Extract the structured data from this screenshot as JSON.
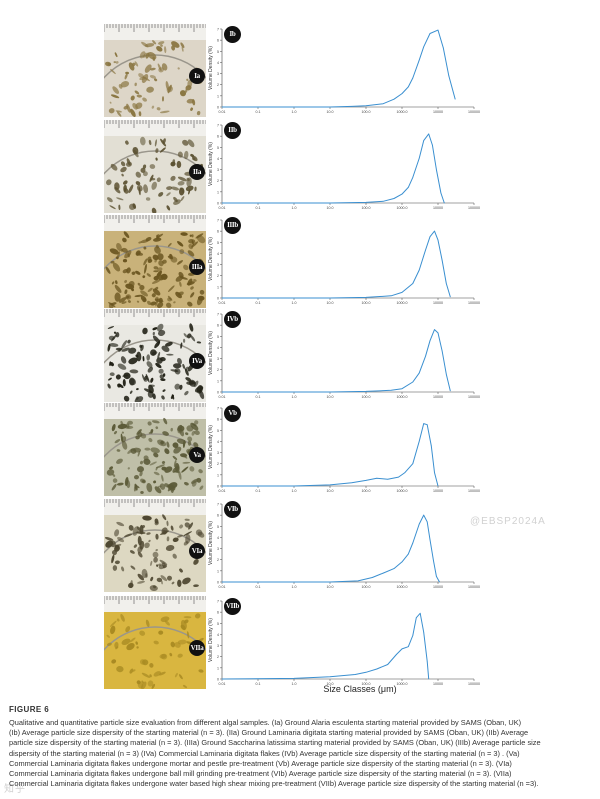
{
  "figure": {
    "label": "FIGURE 6",
    "x_axis_title": "Size Classes (μm)",
    "y_axis_label": "Volume Density (%)",
    "caption_lines": [
      "Qualitative and quantitative particle size evaluation from different algal samples. (Ia) Ground Alaria esculenta starting material provided by SAMS (Oban, UK)",
      "(Ib) Average particle size dispersity of the starting material (n = 3). (IIa) Ground Laminaria digitata starting material provided by SAMS (Oban, UK) (IIb) Average",
      "particle size dispersity of the starting material (n = 3). (IIIa) Ground Saccharina latissima starting material provided by SAMS (Oban, UK) (IIIb) Average particle size",
      "dispersity of the starting material (n = 3) (IVa) Commercial Laminaria digitata flakes (IVb) Average particle size dispersity of the starting material (n = 3) . (Va)",
      "Commercial Laminaria digitata flakes undergone mortar and pestle pre-treatment (Vb) Average particle size dispersity of the starting material (n = 3). (VIa)",
      "Commercial Laminaria digitata flakes undergone ball mill grinding pre-treatment (VIb) Average particle size dispersity of the starting material (n = 3). (VIIa)",
      "Commercial Laminaria digitata flakes undergone water based high shear mixing pre-treatment (VIIb) Average particle size dispersity of the starting material (n =3)."
    ],
    "watermark_left": "知乎",
    "watermark_right": "@EBSP2024A"
  },
  "chart_data": [
    {
      "type": "line",
      "panel": "Ib",
      "photo_label": "Ia",
      "x_scale": "log",
      "xlim": [
        0.01,
        100000
      ],
      "x_ticks": [
        "0.01",
        "0.1",
        "1.0",
        "10.0",
        "100.0",
        "1000.0",
        "10000",
        "100000"
      ],
      "ylim": [
        0,
        7
      ],
      "y_ticks": [
        "0",
        "1",
        "2",
        "3",
        "4",
        "5",
        "6",
        "7"
      ],
      "series": [
        {
          "x": [
            0.01,
            10,
            40,
            100,
            300,
            600,
            1000,
            1500,
            2000,
            3000,
            4000,
            6000,
            10000,
            14000,
            20000,
            30000
          ],
          "y": [
            0,
            0,
            0.05,
            0.12,
            0.3,
            0.7,
            1.2,
            1.8,
            2.6,
            4.2,
            5.4,
            6.6,
            6.9,
            5.3,
            2.8,
            0.7
          ]
        }
      ]
    },
    {
      "type": "line",
      "panel": "IIb",
      "photo_label": "IIa",
      "x_scale": "log",
      "xlim": [
        0.01,
        100000
      ],
      "x_ticks": [
        "0.01",
        "0.1",
        "1.0",
        "10.0",
        "100.0",
        "1000.0",
        "10000",
        "100000"
      ],
      "ylim": [
        0,
        7
      ],
      "y_ticks": [
        "0",
        "1",
        "2",
        "3",
        "4",
        "5",
        "6",
        "7"
      ],
      "series": [
        {
          "x": [
            0.01,
            10,
            100,
            300,
            600,
            1000,
            1500,
            2000,
            3000,
            4000,
            5500,
            7000,
            9000,
            12000,
            15000
          ],
          "y": [
            0,
            0,
            0.05,
            0.15,
            0.4,
            0.8,
            1.4,
            2.3,
            4.0,
            5.6,
            6.2,
            5.2,
            3.0,
            0.9,
            0
          ]
        }
      ]
    },
    {
      "type": "line",
      "panel": "IIIb",
      "photo_label": "IIIa",
      "x_scale": "log",
      "xlim": [
        0.01,
        100000
      ],
      "x_ticks": [
        "0.01",
        "0.1",
        "1.0",
        "10.0",
        "100.0",
        "1000.0",
        "10000",
        "100000"
      ],
      "ylim": [
        0,
        7
      ],
      "y_ticks": [
        "0",
        "1",
        "2",
        "3",
        "4",
        "5",
        "6",
        "7"
      ],
      "series": [
        {
          "x": [
            0.01,
            10,
            100,
            500,
            1000,
            2000,
            3000,
            4500,
            6000,
            8000,
            10000,
            13000,
            17000,
            22000
          ],
          "y": [
            0,
            0,
            0.05,
            0.2,
            0.5,
            1.3,
            2.5,
            4.3,
            5.5,
            6.0,
            5.2,
            3.4,
            1.3,
            0.1
          ]
        }
      ]
    },
    {
      "type": "line",
      "panel": "IVb",
      "photo_label": "IVa",
      "x_scale": "log",
      "xlim": [
        0.01,
        100000
      ],
      "x_ticks": [
        "0.01",
        "0.1",
        "1.0",
        "10.0",
        "100.0",
        "1000.0",
        "10000",
        "100000"
      ],
      "ylim": [
        0,
        7
      ],
      "y_ticks": [
        "0",
        "1",
        "2",
        "3",
        "4",
        "5",
        "6",
        "7"
      ],
      "series": [
        {
          "x": [
            0.01,
            10,
            100,
            500,
            1000,
            2000,
            3000,
            4500,
            6000,
            8000,
            10000,
            13000,
            17000,
            22000
          ],
          "y": [
            0,
            0,
            0.05,
            0.15,
            0.3,
            0.9,
            1.7,
            3.2,
            4.6,
            5.6,
            5.3,
            3.7,
            1.6,
            0.1
          ]
        }
      ]
    },
    {
      "type": "line",
      "panel": "Vb",
      "photo_label": "Va",
      "x_scale": "log",
      "xlim": [
        0.01,
        100000
      ],
      "x_ticks": [
        "0.01",
        "0.1",
        "1.0",
        "10.0",
        "100.0",
        "1000.0",
        "10000",
        "100000"
      ],
      "ylim": [
        0,
        7
      ],
      "y_ticks": [
        "0",
        "1",
        "2",
        "3",
        "4",
        "5",
        "6",
        "7"
      ],
      "series": [
        {
          "x": [
            0.01,
            1,
            10,
            40,
            100,
            200,
            400,
            800,
            1200,
            2000,
            3000,
            4000,
            5000,
            6500,
            8000,
            10000
          ],
          "y": [
            0,
            0,
            0.1,
            0.3,
            0.5,
            0.7,
            0.6,
            0.8,
            1.2,
            2.0,
            4.0,
            5.6,
            5.5,
            3.6,
            1.2,
            0
          ]
        }
      ]
    },
    {
      "type": "line",
      "panel": "VIb",
      "photo_label": "VIa",
      "x_scale": "log",
      "xlim": [
        0.01,
        100000
      ],
      "x_ticks": [
        "0.01",
        "0.1",
        "1.0",
        "10.0",
        "100.0",
        "1000.0",
        "10000",
        "100000"
      ],
      "ylim": [
        0,
        7
      ],
      "y_ticks": [
        "0",
        "1",
        "2",
        "3",
        "4",
        "5",
        "6",
        "7"
      ],
      "series": [
        {
          "x": [
            0.01,
            10,
            60,
            150,
            300,
            600,
            1000,
            1500,
            2000,
            3000,
            4000,
            5000,
            6000,
            7500,
            9000,
            11000
          ],
          "y": [
            0,
            0,
            0.1,
            0.4,
            0.8,
            1.2,
            1.8,
            2.5,
            3.5,
            5.2,
            6.0,
            5.4,
            3.8,
            1.9,
            0.5,
            0
          ]
        }
      ]
    },
    {
      "type": "line",
      "panel": "VIIb",
      "photo_label": "VIIa",
      "x_scale": "log",
      "xlim": [
        0.01,
        100000
      ],
      "x_ticks": [
        "0.01",
        "0.1",
        "1.0",
        "10.0",
        "100.0",
        "1000.0",
        "10000",
        "100000"
      ],
      "ylim": [
        0,
        7
      ],
      "y_ticks": [
        "0",
        "1",
        "2",
        "3",
        "4",
        "5",
        "6",
        "7"
      ],
      "series": [
        {
          "x": [
            0.01,
            1,
            10,
            50,
            100,
            200,
            400,
            700,
            1000,
            1500,
            2000,
            2500,
            3200,
            4000,
            5000,
            5500
          ],
          "y": [
            0,
            0.05,
            0.2,
            0.4,
            0.6,
            0.9,
            1.3,
            2.2,
            2.7,
            2.9,
            3.9,
            5.5,
            5.9,
            4.2,
            1.6,
            0
          ]
        }
      ]
    }
  ],
  "photos": [
    {
      "bg": "#ddd6c8",
      "flake": "#8a7642",
      "density": 0.55
    },
    {
      "bg": "#e2dfd4",
      "flake": "#5a5030",
      "density": 0.55
    },
    {
      "bg": "#c9b27a",
      "flake": "#6a5520",
      "density": 0.9
    },
    {
      "bg": "#e9e8e2",
      "flake": "#1f1f14",
      "density": 0.75
    },
    {
      "bg": "#bfbfa8",
      "flake": "#5b5a38",
      "density": 0.85
    },
    {
      "bg": "#ddd8c2",
      "flake": "#4d4630",
      "density": 0.6
    },
    {
      "bg": "#d9b640",
      "flake": "#a88a22",
      "density": 0.4
    }
  ]
}
